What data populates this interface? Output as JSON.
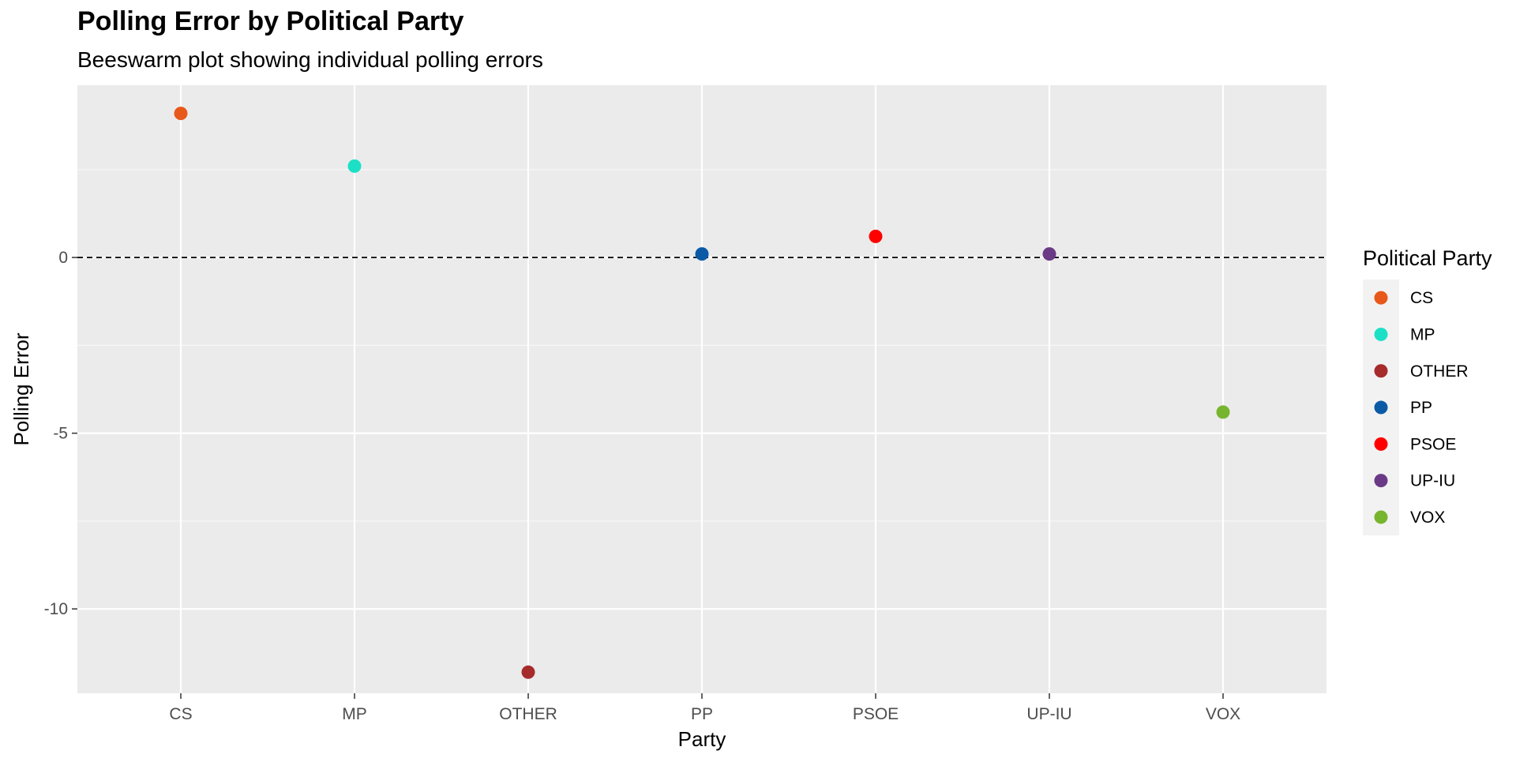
{
  "chart_data": {
    "type": "scatter",
    "title": "Polling Error by Political Party",
    "subtitle": "Beeswarm plot showing individual polling errors",
    "xlabel": "Party",
    "ylabel": "Polling Error",
    "categories": [
      "CS",
      "MP",
      "OTHER",
      "PP",
      "PSOE",
      "UP-IU",
      "VOX"
    ],
    "points": [
      {
        "party": "CS",
        "value": 4.1,
        "color": "#E8581A"
      },
      {
        "party": "MP",
        "value": 2.6,
        "color": "#1CE0C6"
      },
      {
        "party": "OTHER",
        "value": -11.8,
        "color": "#A62B2B"
      },
      {
        "party": "PP",
        "value": 0.1,
        "color": "#0B5AA6"
      },
      {
        "party": "PSOE",
        "value": 0.6,
        "color": "#FF0000"
      },
      {
        "party": "UP-IU",
        "value": 0.1,
        "color": "#6A3A87"
      },
      {
        "party": "VOX",
        "value": -4.4,
        "color": "#77B52E"
      }
    ],
    "ylim": [
      -12.4,
      4.9
    ],
    "yticks": [
      0,
      -5,
      -10
    ],
    "ytick_labels": [
      "0",
      "-5",
      "-10"
    ],
    "reference_line": 0,
    "grid": true,
    "legend": {
      "title": "Political Party",
      "position": "right",
      "entries": [
        "CS",
        "MP",
        "OTHER",
        "PP",
        "PSOE",
        "UP-IU",
        "VOX"
      ]
    }
  }
}
